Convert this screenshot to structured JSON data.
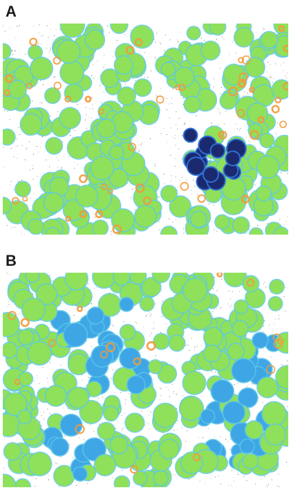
{
  "figure": {
    "panels": [
      {
        "label": "A",
        "palette": {
          "cell_fill": "#8fe05a",
          "cell_edge": "#5cc8e8",
          "hotspot": "#f39a3a",
          "dark_cluster": "#1b2a6e",
          "dark_cluster_edge": "#2f6fd6",
          "speckle": "#3a3a3a",
          "background": "#ffffff"
        }
      },
      {
        "label": "B",
        "palette": {
          "cell_fill": "#8fe05a",
          "cell_edge": "#5cc8e8",
          "blue_cell": "#3fa6e6",
          "hotspot": "#f39a3a",
          "speckle": "#3a3a3a",
          "background": "#ffffff"
        }
      }
    ]
  }
}
